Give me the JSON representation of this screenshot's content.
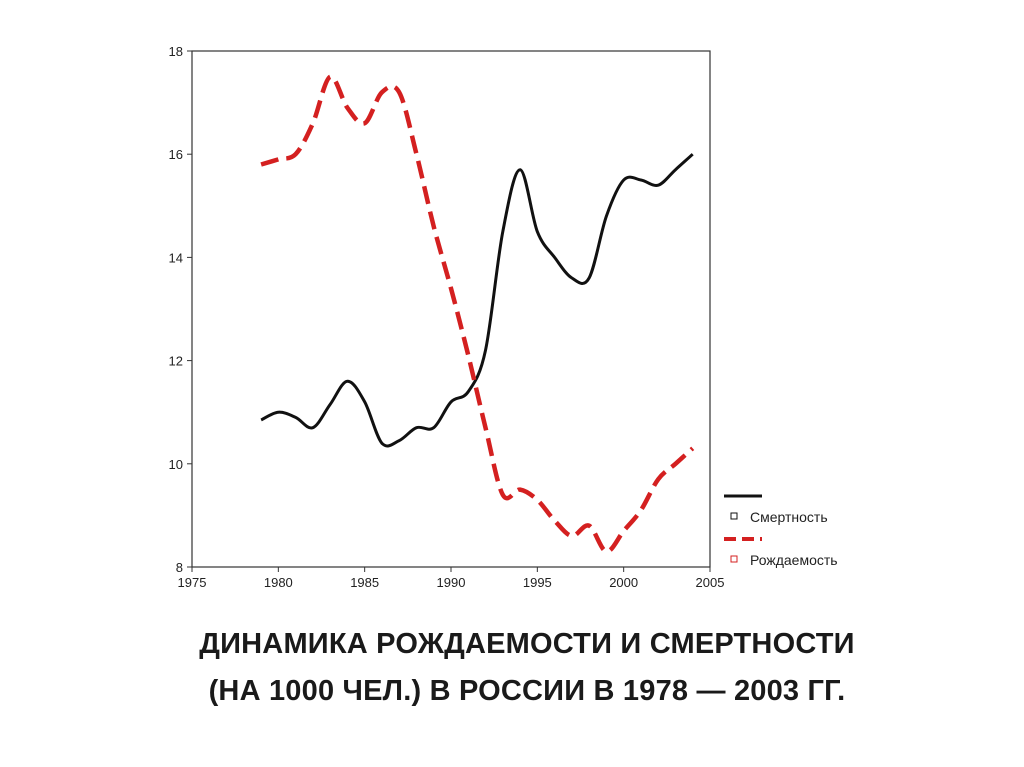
{
  "chart_data": {
    "type": "line",
    "title": "ДИНАМИКА РОЖДАЕМОСТИ И СМЕРТНОСТИ",
    "subtitle": "(НА 1000 ЧЕЛ.) В РОССИИ В 1978 — 2003 ГГ.",
    "xlabel": "",
    "ylabel": "",
    "xlim": [
      1975,
      2005
    ],
    "ylim": [
      8,
      18
    ],
    "x_ticks": [
      "1975",
      "1980",
      "1985",
      "1990",
      "1995",
      "2000",
      "2005"
    ],
    "y_ticks": [
      "8",
      "10",
      "12",
      "14",
      "16",
      "18"
    ],
    "grid": false,
    "legend_position": "right",
    "series": [
      {
        "name": "Смертность",
        "color": "#111111",
        "style": "solid",
        "x": [
          1979,
          1980,
          1981,
          1982,
          1983,
          1984,
          1985,
          1986,
          1987,
          1988,
          1989,
          1990,
          1991,
          1992,
          1993,
          1994,
          1995,
          1996,
          1997,
          1998,
          1999,
          2000,
          2001,
          2002,
          2003,
          2004
        ],
        "values": [
          10.85,
          11.0,
          10.9,
          10.7,
          11.15,
          11.6,
          11.2,
          10.4,
          10.45,
          10.7,
          10.7,
          11.2,
          11.4,
          12.2,
          14.5,
          15.7,
          14.5,
          14.0,
          13.6,
          13.6,
          14.8,
          15.5,
          15.5,
          15.4,
          15.7,
          16.0
        ]
      },
      {
        "name": "Рождаемость",
        "color": "#d42020",
        "style": "dashed",
        "x": [
          1979,
          1980,
          1981,
          1982,
          1983,
          1984,
          1985,
          1986,
          1987,
          1988,
          1989,
          1990,
          1991,
          1992,
          1993,
          1994,
          1995,
          1996,
          1997,
          1998,
          1999,
          2000,
          2001,
          2002,
          2003,
          2004
        ],
        "values": [
          15.8,
          15.9,
          16.0,
          16.6,
          17.5,
          16.9,
          16.6,
          17.2,
          17.2,
          16.0,
          14.6,
          13.4,
          12.1,
          10.7,
          9.4,
          9.5,
          9.3,
          8.9,
          8.6,
          8.8,
          8.3,
          8.7,
          9.1,
          9.7,
          10.0,
          10.3
        ]
      }
    ]
  }
}
